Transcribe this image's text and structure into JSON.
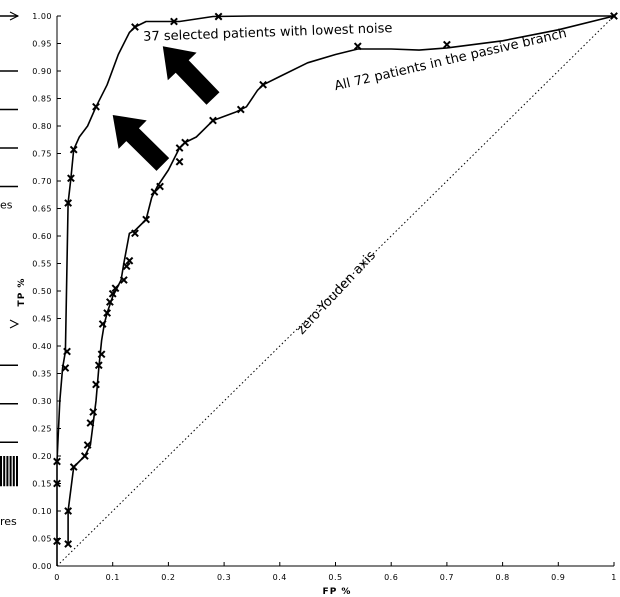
{
  "chart_data": {
    "type": "line",
    "xlabel": "FP %",
    "ylabel": "TP %",
    "xlim": [
      0,
      1
    ],
    "ylim": [
      0,
      1
    ],
    "x_ticks": [
      "0",
      "0.1",
      "0.2",
      "0.3",
      "0.4",
      "0.5",
      "0.6",
      "0.7",
      "0.8",
      "0.9",
      "1"
    ],
    "y_ticks": [
      "0.00",
      "0.05",
      "0.10",
      "0.15",
      "0.20",
      "0.25",
      "0.30",
      "0.35",
      "0.40",
      "0.45",
      "0.50",
      "0.55",
      "0.60",
      "0.65",
      "0.70",
      "0.75",
      "0.80",
      "0.85",
      "0.90",
      "0.95",
      "1.00"
    ],
    "grid": false,
    "series": [
      {
        "name": "37 selected patients with lowest noise",
        "x": [
          0.0,
          0.0,
          0.0,
          0.0,
          0.005,
          0.01,
          0.015,
          0.018,
          0.02,
          0.025,
          0.03,
          0.04,
          0.055,
          0.07,
          0.09,
          0.11,
          0.13,
          0.14,
          0.16,
          0.2,
          0.22,
          0.28,
          0.35,
          0.5,
          0.7,
          1.0
        ],
        "y": [
          0.0,
          0.045,
          0.15,
          0.19,
          0.3,
          0.36,
          0.39,
          0.55,
          0.66,
          0.705,
          0.757,
          0.78,
          0.8,
          0.835,
          0.875,
          0.93,
          0.97,
          0.98,
          0.99,
          0.99,
          0.99,
          0.999,
          1.0,
          1.0,
          1.0,
          1.0
        ],
        "markers": [
          [
            0.0,
            0.045
          ],
          [
            0.0,
            0.15
          ],
          [
            0.0,
            0.19
          ],
          [
            0.015,
            0.36
          ],
          [
            0.018,
            0.39
          ],
          [
            0.02,
            0.66
          ],
          [
            0.025,
            0.705
          ],
          [
            0.03,
            0.757
          ],
          [
            0.07,
            0.835
          ],
          [
            0.14,
            0.98
          ],
          [
            0.21,
            0.99
          ],
          [
            0.29,
            0.999
          ],
          [
            1.0,
            1.0
          ]
        ]
      },
      {
        "name": "All 72 patients in the passive branch",
        "x": [
          0.02,
          0.02,
          0.03,
          0.04,
          0.05,
          0.06,
          0.065,
          0.07,
          0.075,
          0.08,
          0.085,
          0.09,
          0.1,
          0.105,
          0.115,
          0.12,
          0.13,
          0.14,
          0.16,
          0.17,
          0.18,
          0.2,
          0.22,
          0.23,
          0.25,
          0.28,
          0.32,
          0.34,
          0.36,
          0.37,
          0.4,
          0.45,
          0.5,
          0.54,
          0.6,
          0.65,
          0.7,
          0.8,
          0.9,
          1.0
        ],
        "y": [
          0.04,
          0.1,
          0.18,
          0.19,
          0.2,
          0.22,
          0.26,
          0.3,
          0.36,
          0.41,
          0.44,
          0.46,
          0.49,
          0.5,
          0.52,
          0.55,
          0.605,
          0.61,
          0.63,
          0.67,
          0.69,
          0.72,
          0.76,
          0.77,
          0.78,
          0.81,
          0.825,
          0.835,
          0.865,
          0.875,
          0.89,
          0.915,
          0.93,
          0.94,
          0.94,
          0.938,
          0.942,
          0.955,
          0.975,
          1.0
        ],
        "markers": [
          [
            0.02,
            0.04
          ],
          [
            0.02,
            0.1
          ],
          [
            0.03,
            0.18
          ],
          [
            0.05,
            0.2
          ],
          [
            0.055,
            0.22
          ],
          [
            0.06,
            0.26
          ],
          [
            0.065,
            0.28
          ],
          [
            0.07,
            0.33
          ],
          [
            0.075,
            0.365
          ],
          [
            0.08,
            0.385
          ],
          [
            0.082,
            0.44
          ],
          [
            0.09,
            0.46
          ],
          [
            0.095,
            0.48
          ],
          [
            0.1,
            0.495
          ],
          [
            0.105,
            0.505
          ],
          [
            0.12,
            0.52
          ],
          [
            0.125,
            0.545
          ],
          [
            0.13,
            0.555
          ],
          [
            0.14,
            0.605
          ],
          [
            0.16,
            0.63
          ],
          [
            0.175,
            0.68
          ],
          [
            0.185,
            0.69
          ],
          [
            0.22,
            0.735
          ],
          [
            0.22,
            0.76
          ],
          [
            0.23,
            0.77
          ],
          [
            0.28,
            0.81
          ],
          [
            0.33,
            0.83
          ],
          [
            0.37,
            0.875
          ],
          [
            0.54,
            0.945
          ],
          [
            0.7,
            0.948
          ]
        ]
      },
      {
        "name": "zero-Youden axis",
        "x": [
          0,
          1
        ],
        "y": [
          0,
          1
        ]
      }
    ],
    "annotations": [
      {
        "text": "37 selected patients with lowest noise",
        "x": 0.155,
        "y": 0.955
      },
      {
        "text": "All 72 patients in the passive branch",
        "x": 0.5,
        "y": 0.865
      },
      {
        "text": "zero-Youden axis",
        "x": 0.44,
        "y": 0.42
      }
    ],
    "arrows": [
      {
        "tip": [
          0.19,
          0.945
        ],
        "tail": [
          0.28,
          0.85
        ]
      },
      {
        "tip": [
          0.1,
          0.82
        ],
        "tail": [
          0.19,
          0.73
        ]
      }
    ]
  },
  "edge_fragments": [
    {
      "text": "es",
      "y": 0.65
    },
    {
      "text": "res",
      "y": 0.075
    }
  ]
}
